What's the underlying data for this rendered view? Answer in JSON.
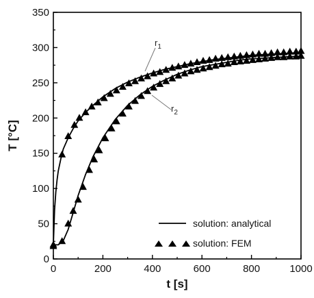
{
  "chart_data": {
    "type": "line",
    "xlabel": "t [s]",
    "ylabel": "T [°C]",
    "xlim": [
      0,
      1000
    ],
    "ylim": [
      0,
      350
    ],
    "xticks": [
      0,
      200,
      400,
      600,
      800,
      1000
    ],
    "yticks": [
      0,
      50,
      100,
      150,
      200,
      250,
      300,
      350
    ],
    "grid": false,
    "legend_position": "bottom-right",
    "legend": {
      "analytical": "solution: analytical",
      "fem": "solution: FEM"
    },
    "annotations": {
      "r1_base": "r",
      "r1_sub": "1",
      "r2_base": "r",
      "r2_sub": "2"
    },
    "series": [
      {
        "id": "r1-analytical",
        "style": "solid-line",
        "color": "#000000",
        "x": [
          0,
          5,
          10,
          15,
          20,
          30,
          40,
          60,
          80,
          100,
          130,
          160,
          200,
          250,
          300,
          350,
          400,
          450,
          500,
          550,
          600,
          650,
          700,
          750,
          800,
          850,
          900,
          950,
          1000
        ],
        "y": [
          20,
          70,
          95,
          112,
          125,
          142,
          156,
          172,
          185,
          196,
          208,
          218,
          230,
          242,
          251,
          258,
          264,
          269,
          273,
          277,
          280,
          283,
          285,
          287,
          289,
          290,
          291,
          292,
          293
        ]
      },
      {
        "id": "r1-fem",
        "style": "triangle-markers",
        "color": "#000000",
        "x": [
          0,
          35,
          60,
          85,
          105,
          130,
          155,
          180,
          205,
          230,
          255,
          280,
          305,
          330,
          355,
          380,
          405,
          430,
          455,
          480,
          505,
          530,
          555,
          580,
          605,
          630,
          655,
          680,
          705,
          730,
          755,
          780,
          805,
          830,
          855,
          880,
          905,
          930,
          955,
          980,
          1000
        ],
        "y": [
          20,
          148,
          174,
          190,
          200,
          208,
          216,
          222,
          228,
          234,
          239,
          244,
          249,
          252,
          256,
          259,
          263,
          265,
          268,
          271,
          273,
          275,
          277,
          279,
          281,
          282,
          284,
          285,
          286,
          287,
          288,
          289,
          290,
          291,
          291,
          292,
          293,
          293,
          294,
          294,
          295
        ]
      },
      {
        "id": "r2-analytical",
        "style": "solid-line",
        "color": "#000000",
        "x": [
          0,
          20,
          40,
          60,
          80,
          100,
          130,
          160,
          200,
          250,
          300,
          350,
          400,
          450,
          500,
          550,
          600,
          650,
          700,
          750,
          800,
          850,
          900,
          950,
          1000
        ],
        "y": [
          20,
          20,
          26,
          42,
          66,
          90,
          120,
          145,
          172,
          198,
          218,
          233,
          245,
          254,
          262,
          268,
          273,
          276,
          279,
          282,
          284,
          285,
          286,
          287,
          288
        ]
      },
      {
        "id": "r2-fem",
        "style": "triangle-markers",
        "color": "#000000",
        "x": [
          0,
          35,
          60,
          80,
          100,
          120,
          145,
          165,
          185,
          210,
          235,
          255,
          280,
          305,
          330,
          355,
          380,
          405,
          430,
          455,
          480,
          505,
          530,
          555,
          580,
          605,
          630,
          655,
          680,
          705,
          730,
          755,
          780,
          805,
          830,
          855,
          880,
          905,
          930,
          955,
          980,
          1000
        ],
        "y": [
          18,
          25,
          50,
          68,
          84,
          102,
          126,
          141,
          154,
          171,
          185,
          195,
          206,
          216,
          224,
          231,
          238,
          243,
          248,
          252,
          256,
          260,
          263,
          266,
          268,
          270,
          272,
          274,
          276,
          277,
          279,
          280,
          281,
          282,
          283,
          284,
          285,
          286,
          286,
          287,
          287,
          288
        ]
      }
    ]
  }
}
